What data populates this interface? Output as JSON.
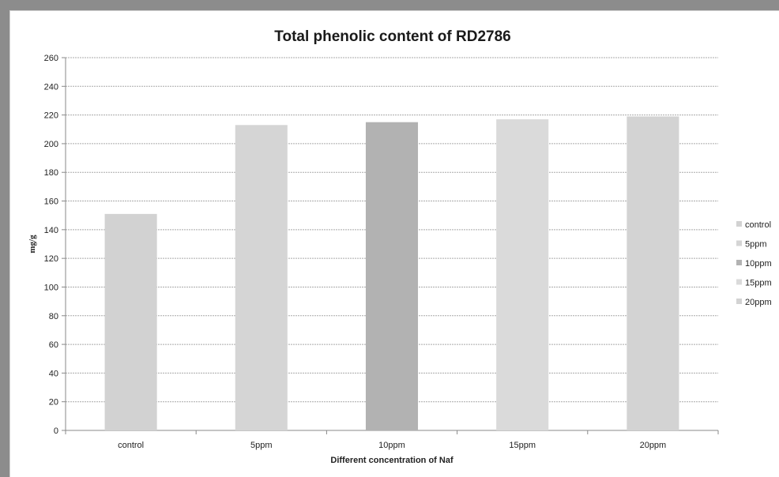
{
  "chart_data": {
    "type": "bar",
    "title": "Total phenolic content of RD2786",
    "xlabel": "Different concentration  of Naf",
    "ylabel": "mg/g",
    "categories": [
      "control",
      "5ppm",
      "10ppm",
      "15ppm",
      "20ppm"
    ],
    "values": [
      151,
      213,
      215,
      217,
      219
    ],
    "ylim": [
      0,
      260
    ],
    "yticks": [
      0,
      20,
      40,
      60,
      80,
      100,
      120,
      140,
      160,
      180,
      200,
      220,
      240,
      260
    ],
    "grid": true,
    "legend": {
      "placement": "right",
      "entries": [
        "control",
        "5ppm",
        "10ppm",
        "15ppm",
        "20ppm"
      ]
    },
    "colors": [
      "#d2d2d2",
      "#d5d5d5",
      "#b2b2b2",
      "#dadada",
      "#d3d3d3"
    ]
  }
}
